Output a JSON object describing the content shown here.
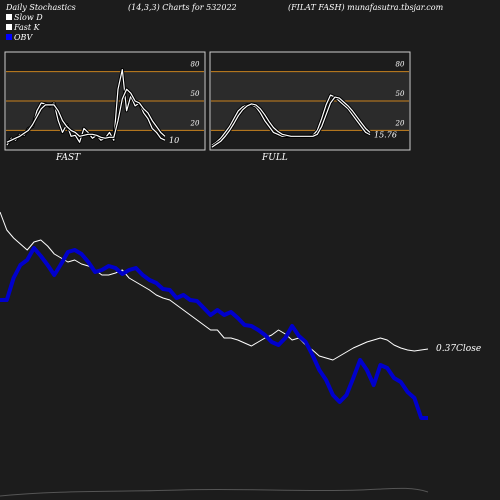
{
  "header": {
    "left": "Daily Stochastics",
    "center": "(14,3,3) Charts for 532022",
    "right": "(FILAT FASH) munafasutra.tbsjar.com"
  },
  "legend": [
    {
      "label": "Slow  D",
      "color": "#ffffff"
    },
    {
      "label": "Fast  K",
      "color": "#ffffff"
    },
    {
      "label": "OBV",
      "color": "#0000ff"
    }
  ],
  "colors": {
    "background": "#1c1c1c",
    "panel": "#2b2b2b",
    "level_line": "#c8821e",
    "obv": "#0000cc",
    "price": "#ffffff"
  },
  "chart_data": [
    {
      "type": "line",
      "title": "FAST",
      "ylim": [
        0,
        100
      ],
      "yticks": [
        20,
        50,
        80
      ],
      "levels": [
        20,
        50,
        80
      ],
      "last_value_label": "10",
      "series": [
        {
          "name": "Fast K",
          "values": [
            5,
            12,
            10,
            16,
            15,
            22,
            24,
            40,
            48,
            47,
            45,
            48,
            30,
            18,
            26,
            14,
            15,
            8,
            22,
            18,
            12,
            15,
            10,
            12,
            18,
            10,
            62,
            82,
            40,
            55,
            45,
            48,
            38,
            32,
            22,
            18,
            12,
            10
          ]
        },
        {
          "name": "Slow D",
          "values": [
            8,
            10,
            12,
            14,
            17,
            20,
            26,
            34,
            42,
            46,
            46,
            46,
            40,
            30,
            24,
            20,
            18,
            14,
            15,
            16,
            16,
            15,
            13,
            12,
            13,
            13,
            30,
            52,
            62,
            58,
            50,
            48,
            42,
            38,
            30,
            24,
            18,
            14
          ]
        }
      ]
    },
    {
      "type": "line",
      "title": "FULL",
      "ylim": [
        0,
        100
      ],
      "yticks": [
        20,
        50,
        80
      ],
      "levels": [
        20,
        50,
        80
      ],
      "last_value_label": "15.76",
      "series": [
        {
          "name": "Full K",
          "values": [
            5,
            8,
            12,
            18,
            24,
            32,
            40,
            44,
            46,
            46,
            44,
            38,
            30,
            24,
            18,
            16,
            14,
            14,
            14,
            14,
            14,
            14,
            14,
            15,
            20,
            32,
            46,
            56,
            54,
            50,
            46,
            42,
            36,
            30,
            24,
            18,
            15.76
          ]
        },
        {
          "name": "Full D",
          "values": [
            3,
            6,
            9,
            14,
            20,
            27,
            35,
            41,
            45,
            47,
            46,
            42,
            36,
            29,
            23,
            19,
            16,
            15,
            14,
            14,
            14,
            14,
            14,
            14,
            16,
            24,
            36,
            48,
            54,
            53,
            49,
            45,
            40,
            34,
            28,
            22,
            18
          ]
        }
      ]
    },
    {
      "type": "line",
      "title": "",
      "price_label": "0.37Close",
      "series": [
        {
          "name": "OBV",
          "values": [
            300,
            300,
            278,
            265,
            260,
            248,
            256,
            265,
            275,
            264,
            252,
            250,
            254,
            262,
            272,
            270,
            266,
            268,
            274,
            270,
            268,
            275,
            280,
            283,
            289,
            290,
            298,
            295,
            300,
            301,
            308,
            315,
            310,
            315,
            312,
            318,
            325,
            326,
            330,
            335,
            342,
            345,
            338,
            326,
            336,
            342,
            355,
            370,
            380,
            395,
            402,
            395,
            378,
            360,
            370,
            385,
            365,
            368,
            378,
            382,
            392,
            398,
            418,
            418
          ]
        },
        {
          "name": "Close",
          "values": [
            212,
            230,
            238,
            244,
            250,
            242,
            240,
            246,
            254,
            258,
            262,
            260,
            264,
            266,
            270,
            275,
            275,
            273,
            270,
            278,
            282,
            286,
            290,
            295,
            298,
            300,
            305,
            310,
            315,
            320,
            325,
            330,
            330,
            338,
            338,
            340,
            343,
            346,
            342,
            338,
            335,
            330,
            334,
            340,
            338,
            345,
            350,
            356,
            358,
            360,
            356,
            352,
            348,
            345,
            342,
            340,
            338,
            340,
            345,
            348,
            350,
            351,
            350,
            349
          ]
        }
      ]
    }
  ]
}
